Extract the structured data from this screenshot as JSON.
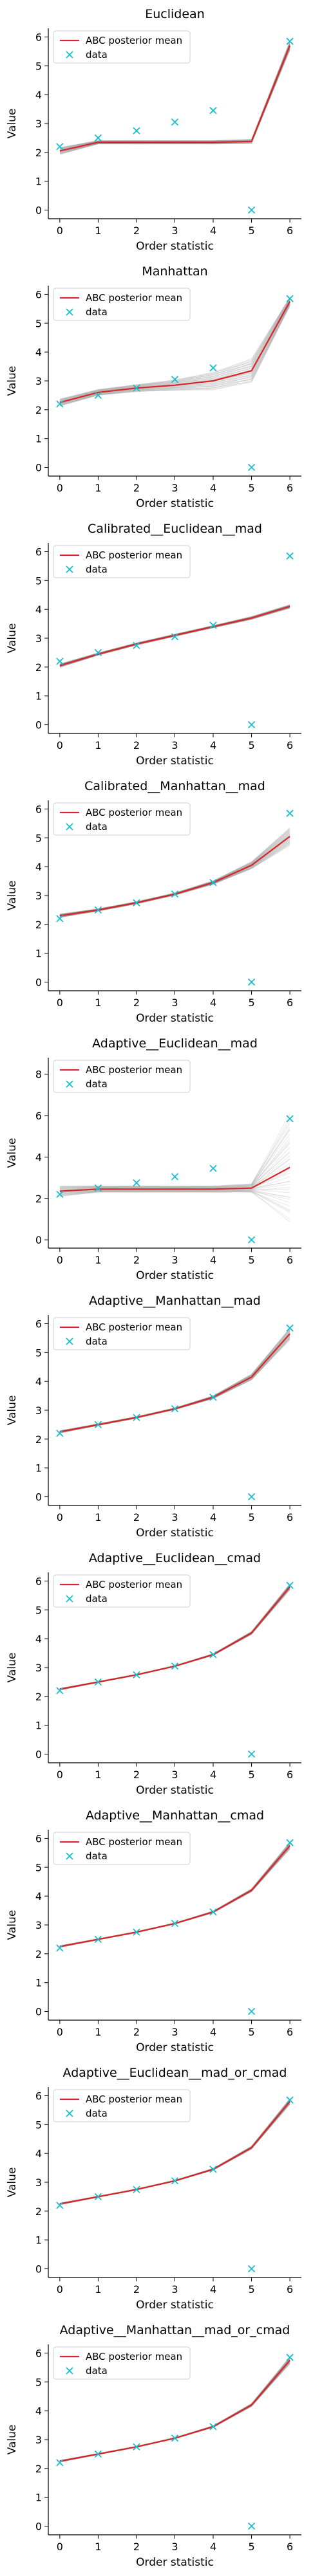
{
  "colors": {
    "posterior": "#d62728",
    "data": "#17becf",
    "samples": "#7f7f7f"
  },
  "legend": {
    "posterior_label": "ABC posterior mean",
    "data_label": "data",
    "placement": "upper-left"
  },
  "chart_data": [
    {
      "type": "line",
      "title": "Euclidean",
      "xlabel": "Order statistic",
      "ylabel": "Value",
      "x": [
        0,
        1,
        2,
        3,
        4,
        5,
        6
      ],
      "xticks": [
        "0",
        "1",
        "2",
        "3",
        "4",
        "5",
        "6"
      ],
      "ylim": [
        -0.3,
        6.3
      ],
      "yticks": [
        "0",
        "1",
        "2",
        "3",
        "4",
        "5",
        "6"
      ],
      "data_points": [
        2.2,
        2.5,
        2.75,
        3.05,
        3.45,
        0.0,
        5.85
      ],
      "posterior_mean": [
        2.05,
        2.35,
        2.35,
        2.35,
        2.35,
        2.38,
        5.7
      ],
      "band_spread": [
        0.12,
        0.06,
        0.06,
        0.06,
        0.06,
        0.07,
        0.15
      ]
    },
    {
      "type": "line",
      "title": "Manhattan",
      "xlabel": "Order statistic",
      "ylabel": "Value",
      "x": [
        0,
        1,
        2,
        3,
        4,
        5,
        6
      ],
      "xticks": [
        "0",
        "1",
        "2",
        "3",
        "4",
        "5",
        "6"
      ],
      "ylim": [
        -0.3,
        6.3
      ],
      "yticks": [
        "0",
        "1",
        "2",
        "3",
        "4",
        "5",
        "6"
      ],
      "data_points": [
        2.2,
        2.5,
        2.75,
        3.05,
        3.45,
        0.0,
        5.85
      ],
      "posterior_mean": [
        2.25,
        2.6,
        2.75,
        2.85,
        3.0,
        3.35,
        5.75
      ],
      "band_spread": [
        0.12,
        0.1,
        0.12,
        0.18,
        0.3,
        0.4,
        0.15
      ]
    },
    {
      "type": "line",
      "title": "Calibrated__Euclidean__mad",
      "xlabel": "Order statistic",
      "ylabel": "Value",
      "x": [
        0,
        1,
        2,
        3,
        4,
        5,
        6
      ],
      "xticks": [
        "0",
        "1",
        "2",
        "3",
        "4",
        "5",
        "6"
      ],
      "ylim": [
        -0.3,
        6.3
      ],
      "yticks": [
        "0",
        "1",
        "2",
        "3",
        "4",
        "5",
        "6"
      ],
      "data_points": [
        2.2,
        2.5,
        2.75,
        3.05,
        3.45,
        0.0,
        5.85
      ],
      "posterior_mean": [
        2.05,
        2.45,
        2.8,
        3.1,
        3.4,
        3.7,
        4.1
      ],
      "band_spread": [
        0.06,
        0.04,
        0.04,
        0.04,
        0.04,
        0.05,
        0.06
      ]
    },
    {
      "type": "line",
      "title": "Calibrated__Manhattan__mad",
      "xlabel": "Order statistic",
      "ylabel": "Value",
      "x": [
        0,
        1,
        2,
        3,
        4,
        5,
        6
      ],
      "xticks": [
        "0",
        "1",
        "2",
        "3",
        "4",
        "5",
        "6"
      ],
      "ylim": [
        -0.3,
        6.3
      ],
      "yticks": [
        "0",
        "1",
        "2",
        "3",
        "4",
        "5",
        "6"
      ],
      "data_points": [
        2.2,
        2.5,
        2.75,
        3.05,
        3.45,
        0.0,
        5.85
      ],
      "posterior_mean": [
        2.3,
        2.5,
        2.75,
        3.05,
        3.45,
        4.05,
        5.05
      ],
      "band_spread": [
        0.06,
        0.04,
        0.04,
        0.04,
        0.06,
        0.12,
        0.3
      ]
    },
    {
      "type": "line",
      "title": "Adaptive__Euclidean__mad",
      "xlabel": "Order statistic",
      "ylabel": "Value",
      "x": [
        0,
        1,
        2,
        3,
        4,
        5,
        6
      ],
      "xticks": [
        "0",
        "1",
        "2",
        "3",
        "4",
        "5",
        "6"
      ],
      "ylim": [
        -0.4,
        8.8
      ],
      "yticks": [
        "0",
        "2",
        "4",
        "6",
        "8"
      ],
      "data_points": [
        2.2,
        2.5,
        2.75,
        3.05,
        3.45,
        0.0,
        5.85
      ],
      "posterior_mean": [
        2.35,
        2.45,
        2.45,
        2.45,
        2.45,
        2.5,
        3.5
      ],
      "band_spread": [
        0.25,
        0.15,
        0.15,
        0.15,
        0.15,
        0.2,
        2.5
      ]
    },
    {
      "type": "line",
      "title": "Adaptive__Manhattan__mad",
      "xlabel": "Order statistic",
      "ylabel": "Value",
      "x": [
        0,
        1,
        2,
        3,
        4,
        5,
        6
      ],
      "xticks": [
        "0",
        "1",
        "2",
        "3",
        "4",
        "5",
        "6"
      ],
      "ylim": [
        -0.3,
        6.3
      ],
      "yticks": [
        "0",
        "1",
        "2",
        "3",
        "4",
        "5",
        "6"
      ],
      "data_points": [
        2.2,
        2.5,
        2.75,
        3.05,
        3.45,
        0.0,
        5.85
      ],
      "posterior_mean": [
        2.25,
        2.5,
        2.75,
        3.05,
        3.45,
        4.15,
        5.65
      ],
      "band_spread": [
        0.04,
        0.03,
        0.03,
        0.03,
        0.05,
        0.1,
        0.2
      ]
    },
    {
      "type": "line",
      "title": "Adaptive__Euclidean__cmad",
      "xlabel": "Order statistic",
      "ylabel": "Value",
      "x": [
        0,
        1,
        2,
        3,
        4,
        5,
        6
      ],
      "xticks": [
        "0",
        "1",
        "2",
        "3",
        "4",
        "5",
        "6"
      ],
      "ylim": [
        -0.3,
        6.3
      ],
      "yticks": [
        "0",
        "1",
        "2",
        "3",
        "4",
        "5",
        "6"
      ],
      "data_points": [
        2.2,
        2.5,
        2.75,
        3.05,
        3.45,
        0.0,
        5.85
      ],
      "posterior_mean": [
        2.25,
        2.5,
        2.75,
        3.05,
        3.45,
        4.2,
        5.8
      ],
      "band_spread": [
        0.03,
        0.02,
        0.02,
        0.02,
        0.03,
        0.05,
        0.1
      ]
    },
    {
      "type": "line",
      "title": "Adaptive__Manhattan__cmad",
      "xlabel": "Order statistic",
      "ylabel": "Value",
      "x": [
        0,
        1,
        2,
        3,
        4,
        5,
        6
      ],
      "xticks": [
        "0",
        "1",
        "2",
        "3",
        "4",
        "5",
        "6"
      ],
      "ylim": [
        -0.3,
        6.3
      ],
      "yticks": [
        "0",
        "1",
        "2",
        "3",
        "4",
        "5",
        "6"
      ],
      "data_points": [
        2.2,
        2.5,
        2.75,
        3.05,
        3.45,
        0.0,
        5.85
      ],
      "posterior_mean": [
        2.25,
        2.5,
        2.75,
        3.05,
        3.45,
        4.2,
        5.75
      ],
      "band_spread": [
        0.03,
        0.02,
        0.02,
        0.02,
        0.03,
        0.05,
        0.12
      ]
    },
    {
      "type": "line",
      "title": "Adaptive__Euclidean__mad_or_cmad",
      "xlabel": "Order statistic",
      "ylabel": "Value",
      "x": [
        0,
        1,
        2,
        3,
        4,
        5,
        6
      ],
      "xticks": [
        "0",
        "1",
        "2",
        "3",
        "4",
        "5",
        "6"
      ],
      "ylim": [
        -0.3,
        6.3
      ],
      "yticks": [
        "0",
        "1",
        "2",
        "3",
        "4",
        "5",
        "6"
      ],
      "data_points": [
        2.2,
        2.5,
        2.75,
        3.05,
        3.45,
        0.0,
        5.85
      ],
      "posterior_mean": [
        2.25,
        2.5,
        2.75,
        3.05,
        3.45,
        4.2,
        5.8
      ],
      "band_spread": [
        0.03,
        0.02,
        0.02,
        0.02,
        0.03,
        0.05,
        0.1
      ]
    },
    {
      "type": "line",
      "title": "Adaptive__Manhattan__mad_or_cmad",
      "xlabel": "Order statistic",
      "ylabel": "Value",
      "x": [
        0,
        1,
        2,
        3,
        4,
        5,
        6
      ],
      "xticks": [
        "0",
        "1",
        "2",
        "3",
        "4",
        "5",
        "6"
      ],
      "ylim": [
        -0.3,
        6.3
      ],
      "yticks": [
        "0",
        "1",
        "2",
        "3",
        "4",
        "5",
        "6"
      ],
      "data_points": [
        2.2,
        2.5,
        2.75,
        3.05,
        3.45,
        0.0,
        5.85
      ],
      "posterior_mean": [
        2.25,
        2.5,
        2.75,
        3.05,
        3.45,
        4.2,
        5.75
      ],
      "band_spread": [
        0.03,
        0.02,
        0.02,
        0.02,
        0.03,
        0.05,
        0.12
      ]
    }
  ]
}
